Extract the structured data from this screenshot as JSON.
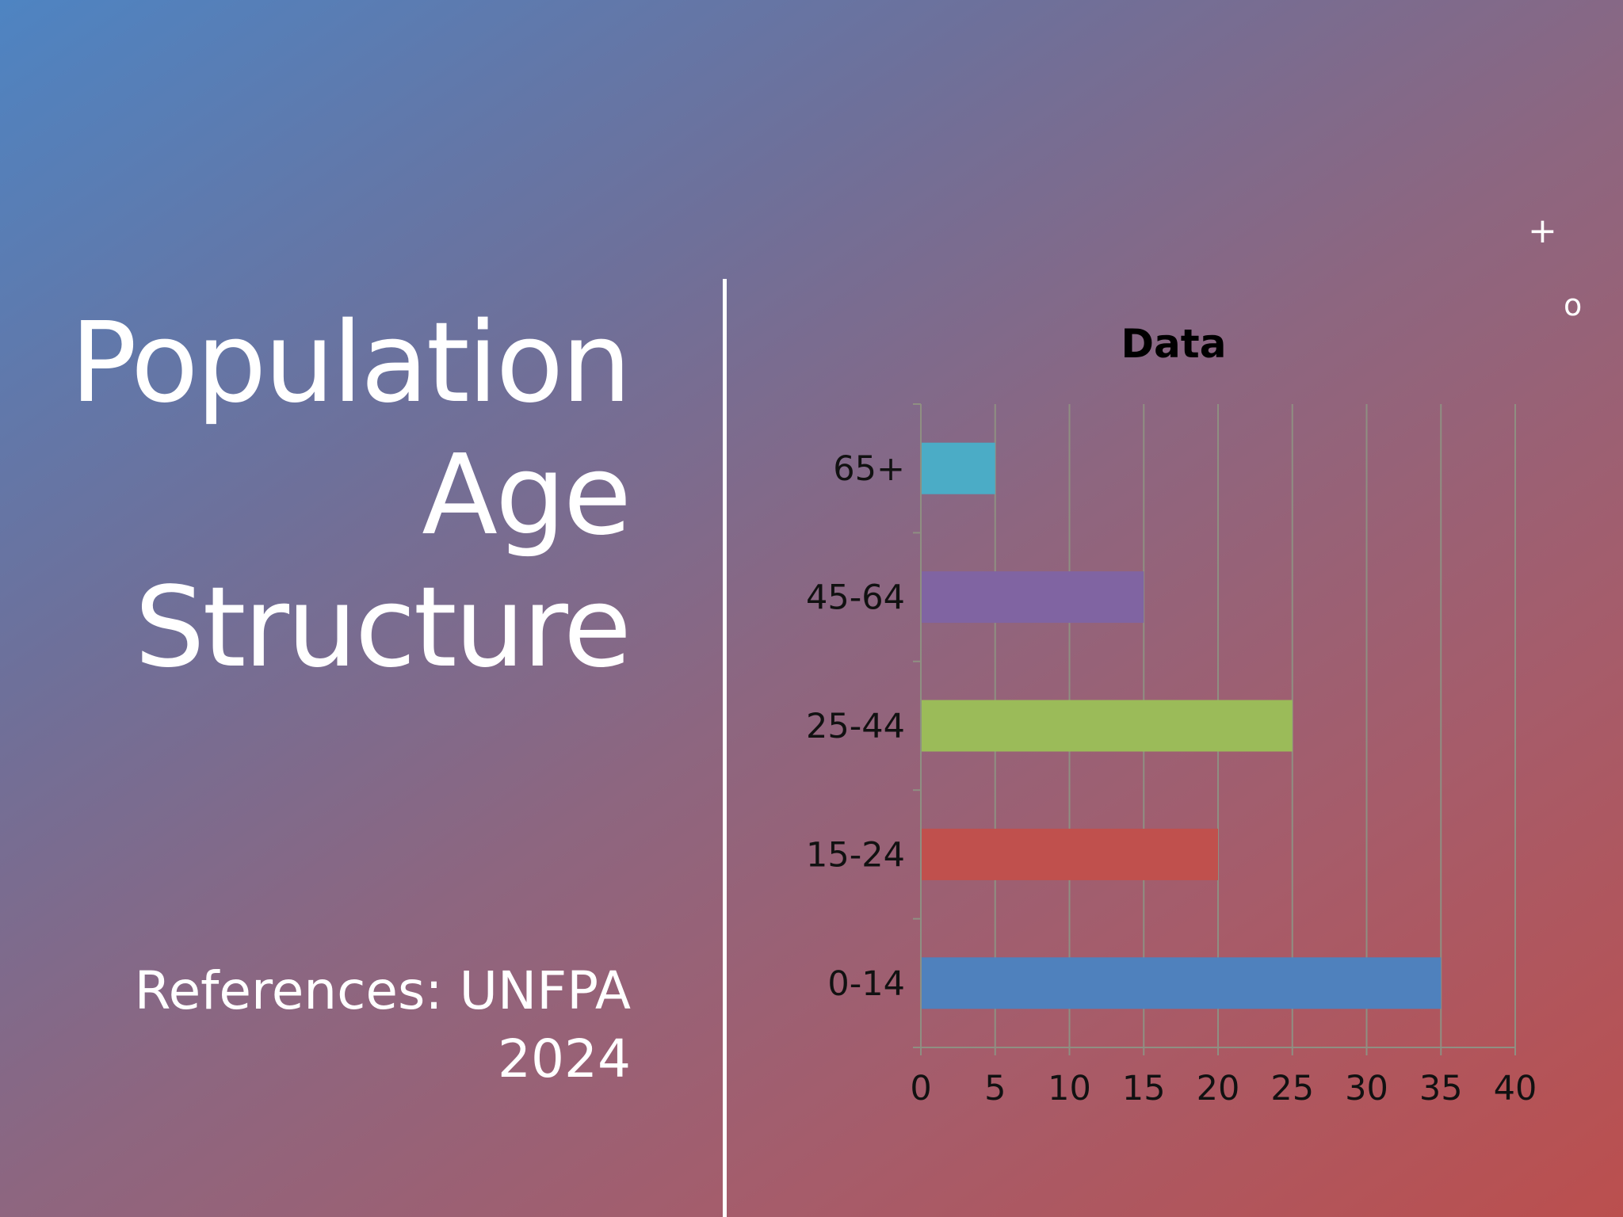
{
  "slide": {
    "title_lines": [
      "Population",
      "Age",
      "Structure"
    ],
    "references_lines": [
      "References: UNFPA",
      "2024"
    ],
    "decorations": {
      "plus": "+",
      "circle": "o"
    }
  },
  "chart_data": {
    "type": "bar",
    "orientation": "horizontal",
    "title": "Data",
    "categories": [
      "0-14",
      "15-24",
      "25-44",
      "45-64",
      "65+"
    ],
    "values": [
      35,
      20,
      25,
      15,
      5
    ],
    "bar_colors": [
      "#4f81bd",
      "#c0504d",
      "#9bbb59",
      "#8064a2",
      "#4bacc6"
    ],
    "xlim": [
      0,
      40
    ],
    "xticks": [
      0,
      5,
      10,
      15,
      20,
      25,
      30,
      35,
      40
    ],
    "grid": true,
    "legend": "none"
  }
}
